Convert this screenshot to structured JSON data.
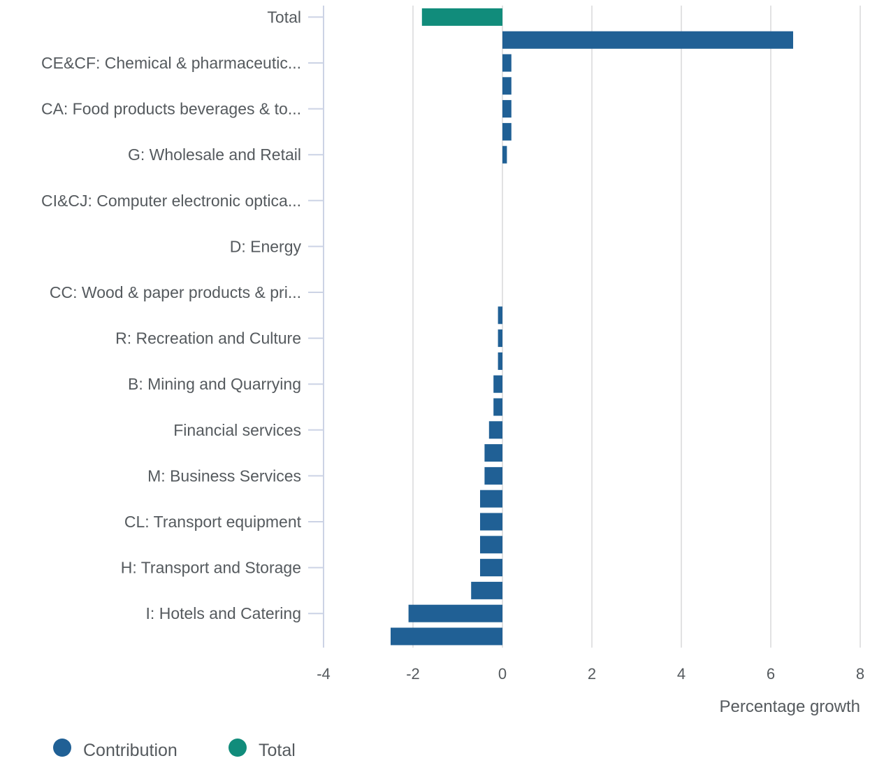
{
  "chart_data": {
    "type": "bar",
    "orientation": "horizontal",
    "xlabel": "Percentage growth",
    "xlim": [
      -4,
      8
    ],
    "xticks": [
      -4,
      -2,
      0,
      2,
      4,
      6,
      8
    ],
    "grid": true,
    "legend_position": "bottom-left",
    "labeled_categories": [
      "Total",
      "CE&CF: Chemical & pharmaceutic...",
      "CA: Food products beverages & to...",
      "G: Wholesale and Retail",
      "CI&CJ: Computer electronic optica...",
      "D: Energy",
      "CC: Wood & paper products & pri...",
      "R: Recreation and Culture",
      "B: Mining and Quarrying",
      "Financial services",
      "M: Business Services",
      "CL: Transport equipment",
      "H: Transport and Storage",
      "I: Hotels and Catering"
    ],
    "series": [
      {
        "name": "Contribution",
        "color": "#206095",
        "values": [
          null,
          6.5,
          0.2,
          0.2,
          0.2,
          0.2,
          0.1,
          0,
          0,
          0,
          0,
          0,
          0,
          -0.1,
          -0.1,
          -0.1,
          -0.2,
          -0.2,
          -0.3,
          -0.4,
          -0.4,
          -0.5,
          -0.5,
          -0.5,
          -0.5,
          -0.7,
          -2.1,
          -2.5
        ]
      },
      {
        "name": "Total",
        "color": "#118c7b",
        "values": [
          -1.8,
          null,
          null,
          null,
          null,
          null,
          null,
          null,
          null,
          null,
          null,
          null,
          null,
          null,
          null,
          null,
          null,
          null,
          null,
          null,
          null,
          null,
          null,
          null,
          null,
          null,
          null,
          null
        ]
      }
    ]
  }
}
